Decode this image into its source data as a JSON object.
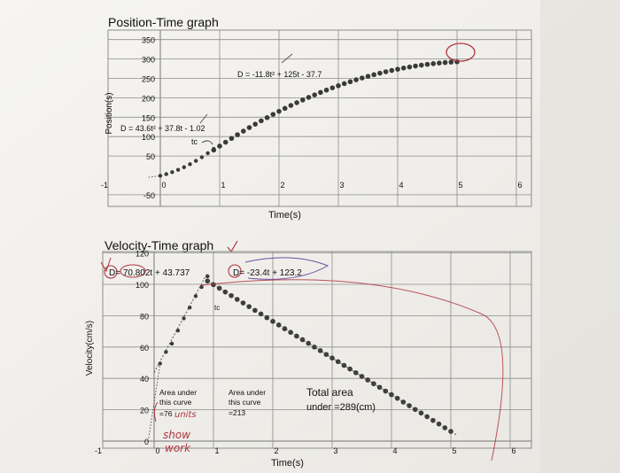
{
  "charts": [
    {
      "title": "Position-Time graph",
      "ylabel": "Position(s)",
      "xlabel": "Time(s)",
      "x_ticks": [
        "-1",
        "0",
        "1",
        "2",
        "3",
        "4",
        "5",
        "6"
      ],
      "y_ticks": [
        "-50",
        "50",
        "100",
        "150",
        "200",
        "250",
        "300",
        "350"
      ],
      "annotations": {
        "eq1": "D = 43.6t² + 37.8t - 1.02",
        "eq2": "D = -11.8t² + 125t - 37.7",
        "tc": "tc"
      }
    },
    {
      "title": "Velocity-Time graph",
      "ylabel": "Velocity(cm/s)",
      "xlabel": "Time(s)",
      "x_ticks": [
        "-1",
        "0",
        "1",
        "2",
        "3",
        "4",
        "5",
        "6"
      ],
      "y_ticks": [
        "0",
        "20",
        "40",
        "60",
        "80",
        "100",
        "120"
      ],
      "annotations": {
        "eq1": "D= 70.802t + 43.737",
        "eq2": "D= -23.4t + 123.2",
        "tc": "tc",
        "area1_lines": [
          "Area under",
          "this curve",
          "=76"
        ],
        "area1_hand": "units",
        "area2_lines": [
          "Area under",
          "this curve",
          "=213"
        ],
        "total_lines": [
          "Total area",
          "under =289(cm)"
        ],
        "handwritten_note": [
          "show",
          "work"
        ]
      }
    }
  ],
  "chart_data": [
    {
      "type": "scatter",
      "title": "Position-Time graph",
      "xlabel": "Time(s)",
      "ylabel": "Position(s)",
      "xlim": [
        -1,
        6
      ],
      "ylim": [
        -50,
        350
      ],
      "grid": true,
      "series": [
        {
          "fit": "D = 43.6t² + 37.8t - 1.02",
          "x": [
            0,
            0.1,
            0.2,
            0.3,
            0.4,
            0.5,
            0.6,
            0.7,
            0.8,
            0.9
          ],
          "y": [
            -1.0,
            3.2,
            8.3,
            14.3,
            21.1,
            28.8,
            37.4,
            46.8,
            57.1,
            68.3
          ]
        },
        {
          "fit": "D = -11.8t² + 125t - 37.7",
          "x": [
            0.9,
            1.0,
            1.1,
            1.2,
            1.3,
            1.4,
            1.5,
            1.6,
            1.7,
            1.8,
            1.9,
            2.0,
            2.1,
            2.2,
            2.3,
            2.4,
            2.5,
            2.6,
            2.7,
            2.8,
            2.9,
            3.0,
            3.1,
            3.2,
            3.3,
            3.4,
            3.5,
            3.6,
            3.7,
            3.8,
            3.9,
            4.0,
            4.1,
            4.2,
            4.3,
            4.4,
            4.5,
            4.6,
            4.7,
            4.8,
            4.9,
            5.0
          ],
          "y": [
            65.2,
            75.5,
            85.5,
            95.3,
            104.8,
            114.1,
            123.2,
            132.0,
            140.7,
            149.0,
            157.2,
            165.1,
            172.7,
            180.2,
            187.4,
            194.3,
            201.1,
            207.5,
            213.8,
            219.8,
            225.6,
            231.1,
            236.4,
            241.5,
            246.4,
            251.0,
            255.4,
            259.5,
            263.4,
            267.1,
            270.5,
            273.7,
            276.7,
            279.4,
            281.9,
            284.2,
            286.2,
            288.0,
            289.6,
            290.9,
            292.0,
            292.8
          ]
        }
      ]
    },
    {
      "type": "scatter",
      "title": "Velocity-Time graph",
      "xlabel": "Time(s)",
      "ylabel": "Velocity(cm/s)",
      "xlim": [
        -1,
        6
      ],
      "ylim": [
        0,
        120
      ],
      "grid": true,
      "series": [
        {
          "fit": "D= 70.802t + 43.737",
          "x": [
            0.1,
            0.2,
            0.3,
            0.4,
            0.5,
            0.6,
            0.7,
            0.8,
            0.9
          ],
          "y": [
            49.5,
            56.9,
            62.2,
            70.5,
            78.3,
            85.2,
            92.5,
            98.3,
            105.1
          ]
        },
        {
          "fit": "D= -23.4t + 123.2",
          "x": [
            0.9,
            1.0,
            1.1,
            1.2,
            1.3,
            1.4,
            1.5,
            1.6,
            1.7,
            1.8,
            1.9,
            2.0,
            2.1,
            2.2,
            2.3,
            2.4,
            2.5,
            2.6,
            2.7,
            2.8,
            2.9,
            3.0,
            3.1,
            3.2,
            3.3,
            3.4,
            3.5,
            3.6,
            3.7,
            3.8,
            3.9,
            4.0,
            4.1,
            4.2,
            4.3,
            4.4,
            4.5,
            4.6,
            4.7,
            4.8,
            4.9,
            5.0
          ],
          "y": [
            102.1,
            99.8,
            97.5,
            95.1,
            92.8,
            90.4,
            88.1,
            85.8,
            83.4,
            81.1,
            78.7,
            76.4,
            74.1,
            71.7,
            69.4,
            67.0,
            64.7,
            62.4,
            60.0,
            57.7,
            55.3,
            53.0,
            50.7,
            48.3,
            46.0,
            43.6,
            41.3,
            39.0,
            36.6,
            34.3,
            31.9,
            29.6,
            27.3,
            24.9,
            22.6,
            20.2,
            17.9,
            15.6,
            13.2,
            10.9,
            8.5,
            6.2
          ]
        }
      ]
    }
  ],
  "colors": {
    "paper": "#f4f3f0",
    "grid": "#8c8c8c",
    "dot": "#3a3a3a",
    "ink_red": "#b0353f",
    "ink_purple": "#6a4fa0"
  }
}
